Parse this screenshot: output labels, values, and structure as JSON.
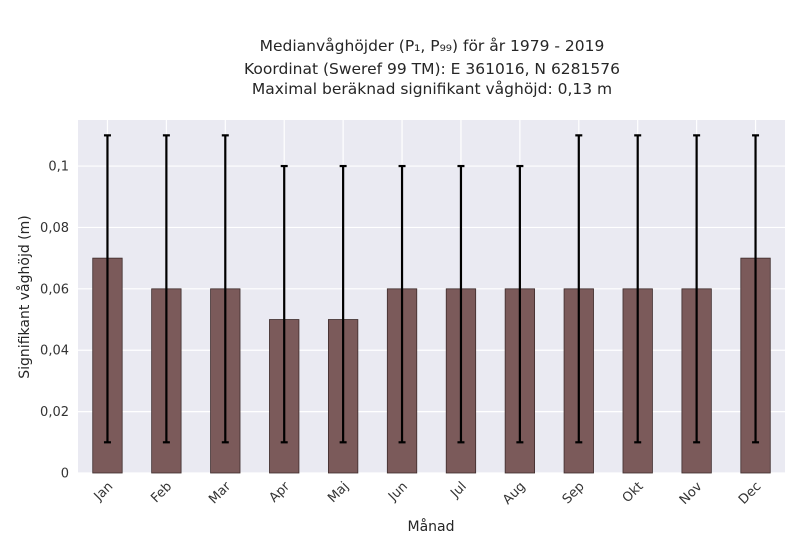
{
  "chart_data": {
    "type": "bar",
    "title_lines": [
      "Medianvåghöjder (P₁, P₉₉) för år 1979 - 2019",
      "Koordinat (Sweref 99 TM): E 361016, N 6281576",
      "Maximal beräknad signifikant våghöjd: 0,13 m"
    ],
    "xlabel": "Månad",
    "ylabel": "Signifikant våghöjd (m)",
    "categories": [
      "Jan",
      "Feb",
      "Mar",
      "Apr",
      "Maj",
      "Jun",
      "Jul",
      "Aug",
      "Sep",
      "Okt",
      "Nov",
      "Dec"
    ],
    "values": [
      0.07,
      0.06,
      0.06,
      0.05,
      0.05,
      0.06,
      0.06,
      0.06,
      0.06,
      0.06,
      0.06,
      0.07
    ],
    "error_low": [
      0.01,
      0.01,
      0.01,
      0.01,
      0.01,
      0.01,
      0.01,
      0.01,
      0.01,
      0.01,
      0.01,
      0.01
    ],
    "error_high": [
      0.11,
      0.11,
      0.11,
      0.1,
      0.1,
      0.1,
      0.1,
      0.1,
      0.11,
      0.11,
      0.11,
      0.11
    ],
    "ylim": [
      0,
      0.115
    ],
    "yticks": [
      0,
      0.02,
      0.04,
      0.06,
      0.08,
      0.1
    ],
    "ytick_labels": [
      "0",
      "0,02",
      "0,04",
      "0,06",
      "0,08",
      "0,1"
    ],
    "grid": true,
    "colors": {
      "bar": "#7b5a5a",
      "bar_edge": "#3d2b2b",
      "errorbar": "#000000",
      "background": "#eaeaf2",
      "grid": "#ffffff"
    }
  }
}
